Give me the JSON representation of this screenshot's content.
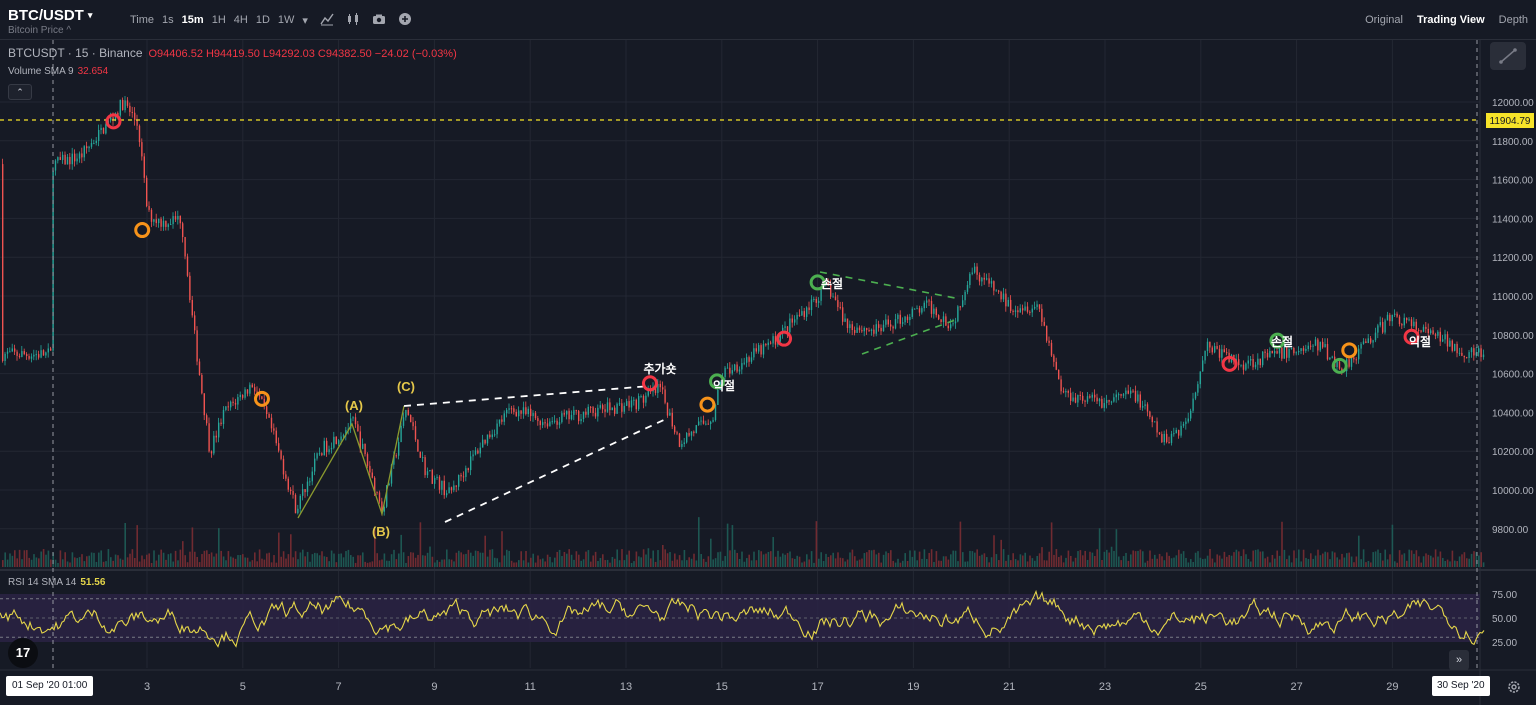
{
  "header": {
    "symbol": "BTC/USDT",
    "caret": "▾",
    "subtitle": "Bitcoin Price ^",
    "intervals": [
      "Time",
      "1s",
      "15m",
      "1H",
      "4H",
      "1D",
      "1W",
      "▾"
    ],
    "active_interval": "15m",
    "tool_icons": [
      "indicator-icon",
      "candle-type-icon",
      "camera-icon",
      "add-icon"
    ],
    "views": [
      "Original",
      "Trading View",
      "Depth"
    ],
    "active_view": "Trading View"
  },
  "legend": {
    "symbol": "BTCUSDT · 15 · Binance",
    "ohlc": "O94406.52 H94419.50 L94292.03 C94382.50 −24.02 (−0.03%)",
    "volume_label": "Volume SMA 9",
    "volume_value": "32.654",
    "collapse": "⌃"
  },
  "rsi_legend": {
    "label": "RSI 14 SMA 14",
    "value": "51.56"
  },
  "price_axis": [
    "12000.00",
    "11800.00",
    "11600.00",
    "11400.00",
    "11200.00",
    "11000.00",
    "10800.00",
    "10600.00",
    "10400.00",
    "10200.00",
    "10000.00",
    "9800.00"
  ],
  "price_marker": "11904.79",
  "rsi_axis": [
    "75.00",
    "50.00",
    "25.00"
  ],
  "time_axis": [
    "3",
    "5",
    "7",
    "9",
    "11",
    "13",
    "15",
    "17",
    "19",
    "21",
    "23",
    "25",
    "27",
    "29"
  ],
  "crosshair_left_date": "01 Sep '20  01:00",
  "crosshair_right_date": "30 Sep '20",
  "logo": "17",
  "scroll_right": "»",
  "annotations": {
    "wave_a": "(A)",
    "wave_b": "(B)",
    "wave_c": "(C)",
    "add_buy": "추가숏",
    "profit": "익절",
    "stop": "손절"
  },
  "colors": {
    "up": "#26a69a",
    "down": "#ef5350",
    "rsi": "#e5d64a",
    "marker_red": "#f23645",
    "marker_orange": "#f7931a",
    "marker_green": "#4caf50",
    "crosshair_price": "#f7e329"
  },
  "chart_data": {
    "type": "candlestick",
    "price_range": [
      9700,
      12150
    ],
    "rsi_range": [
      10,
      85
    ],
    "price_path": [
      [
        1.0,
        11680
      ],
      [
        1.6,
        11720
      ],
      [
        2.2,
        11900
      ],
      [
        2.5,
        12000
      ],
      [
        2.8,
        11880
      ],
      [
        3.0,
        11420
      ],
      [
        3.3,
        11380
      ],
      [
        3.7,
        11400
      ],
      [
        4.0,
        10750
      ],
      [
        4.3,
        10200
      ],
      [
        4.6,
        10400
      ],
      [
        5.2,
        10550
      ],
      [
        5.6,
        10300
      ],
      [
        6.1,
        9900
      ],
      [
        6.6,
        10200
      ],
      [
        7.3,
        10350
      ],
      [
        7.9,
        9900
      ],
      [
        8.4,
        10420
      ],
      [
        8.8,
        10100
      ],
      [
        9.3,
        9980
      ],
      [
        10.0,
        10250
      ],
      [
        10.6,
        10420
      ],
      [
        11.3,
        10350
      ],
      [
        12.2,
        10400
      ],
      [
        13.2,
        10450
      ],
      [
        13.7,
        10520
      ],
      [
        14.1,
        10250
      ],
      [
        14.8,
        10380
      ],
      [
        15.0,
        10600
      ],
      [
        16.0,
        10750
      ],
      [
        16.8,
        10950
      ],
      [
        17.2,
        11050
      ],
      [
        17.6,
        10850
      ],
      [
        18.2,
        10820
      ],
      [
        19.3,
        10950
      ],
      [
        19.8,
        10850
      ],
      [
        20.2,
        11150
      ],
      [
        21.0,
        10950
      ],
      [
        21.6,
        10950
      ],
      [
        22.1,
        10500
      ],
      [
        23.0,
        10450
      ],
      [
        23.6,
        10500
      ],
      [
        24.2,
        10250
      ],
      [
        24.7,
        10350
      ],
      [
        25.1,
        10750
      ],
      [
        25.8,
        10650
      ],
      [
        26.6,
        10700
      ],
      [
        27.5,
        10750
      ],
      [
        27.9,
        10620
      ],
      [
        28.4,
        10750
      ],
      [
        29.0,
        10900
      ],
      [
        29.6,
        10820
      ],
      [
        30.0,
        10780
      ],
      [
        30.6,
        10700
      ]
    ],
    "markers": [
      {
        "day": 2.3,
        "price": 11900,
        "color": "red"
      },
      {
        "day": 2.9,
        "price": 11340,
        "color": "orange"
      },
      {
        "day": 5.4,
        "price": 10470,
        "color": "orange"
      },
      {
        "day": 13.5,
        "price": 10550,
        "color": "red"
      },
      {
        "day": 14.7,
        "price": 10440,
        "color": "orange"
      },
      {
        "day": 14.9,
        "price": 10560,
        "color": "green"
      },
      {
        "day": 16.3,
        "price": 10780,
        "color": "red"
      },
      {
        "day": 17.0,
        "price": 11070,
        "color": "green"
      },
      {
        "day": 25.6,
        "price": 10650,
        "color": "red"
      },
      {
        "day": 26.6,
        "price": 10770,
        "color": "green"
      },
      {
        "day": 27.9,
        "price": 10640,
        "color": "green"
      },
      {
        "day": 28.1,
        "price": 10720,
        "color": "orange"
      },
      {
        "day": 29.4,
        "price": 10790,
        "color": "red"
      }
    ]
  }
}
